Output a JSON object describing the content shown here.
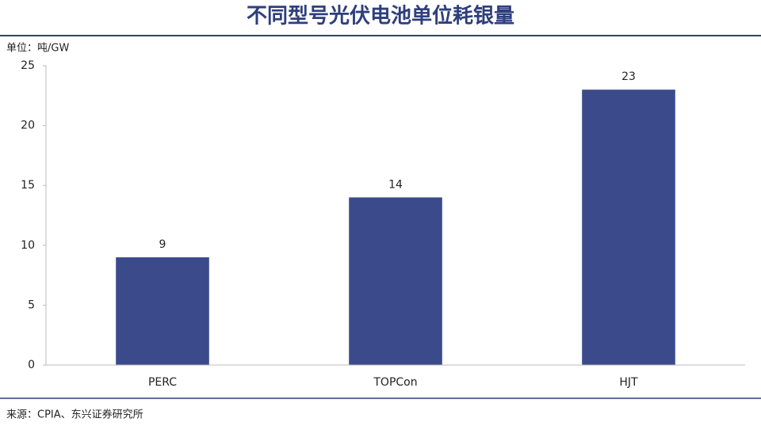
{
  "chart_data": {
    "type": "bar",
    "title": "不同型号光伏电池单位耗银量",
    "ylabel": "单位：吨/GW",
    "categories": [
      "PERC",
      "TOPCon",
      "HJT"
    ],
    "values": [
      9,
      14,
      23
    ],
    "color": "#3b4a8a",
    "ylim": [
      0,
      25
    ],
    "yticks": [
      0,
      5,
      10,
      15,
      20,
      25
    ],
    "grid": false,
    "data_labels": true,
    "source": "来源：CPIA、东兴证券研究所"
  }
}
